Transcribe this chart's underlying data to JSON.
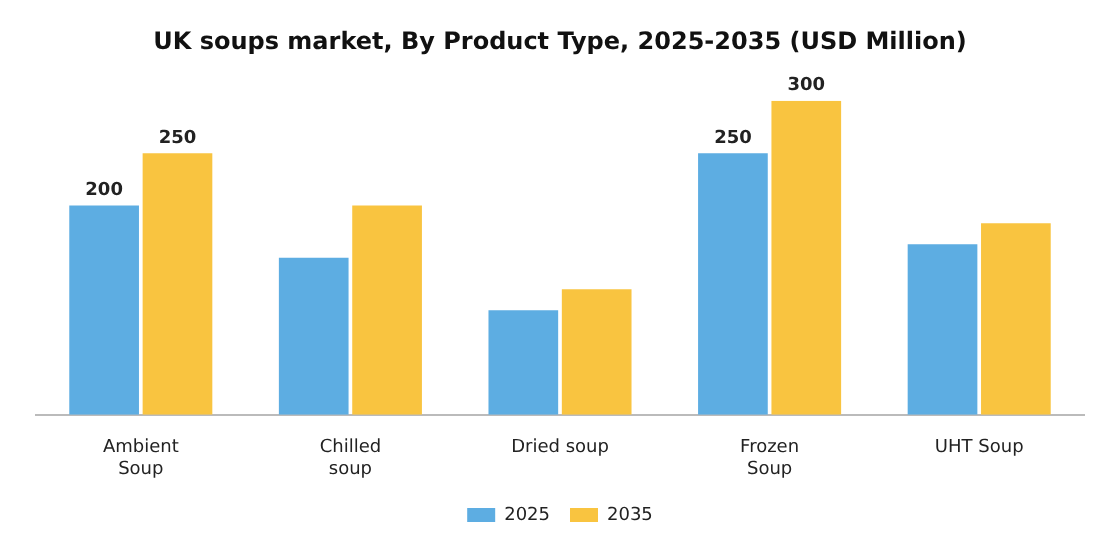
{
  "chart_data": {
    "type": "bar",
    "title": "UK soups market, By Product Type, 2025-2035 (USD Million)",
    "categories": [
      "Ambient\nSoup",
      "Chilled\nsoup",
      "Dried soup",
      "Frozen\nSoup",
      "UHT Soup"
    ],
    "series": [
      {
        "name": "2025",
        "color": "#5dade2",
        "values": [
          200,
          150,
          100,
          250,
          163
        ],
        "value_labels": [
          "200",
          null,
          null,
          "250",
          null
        ]
      },
      {
        "name": "2035",
        "color": "#f9c440",
        "values": [
          250,
          200,
          120,
          300,
          183
        ],
        "value_labels": [
          "250",
          null,
          null,
          "300",
          null
        ]
      }
    ],
    "legend": "bottom",
    "grid": false
  }
}
